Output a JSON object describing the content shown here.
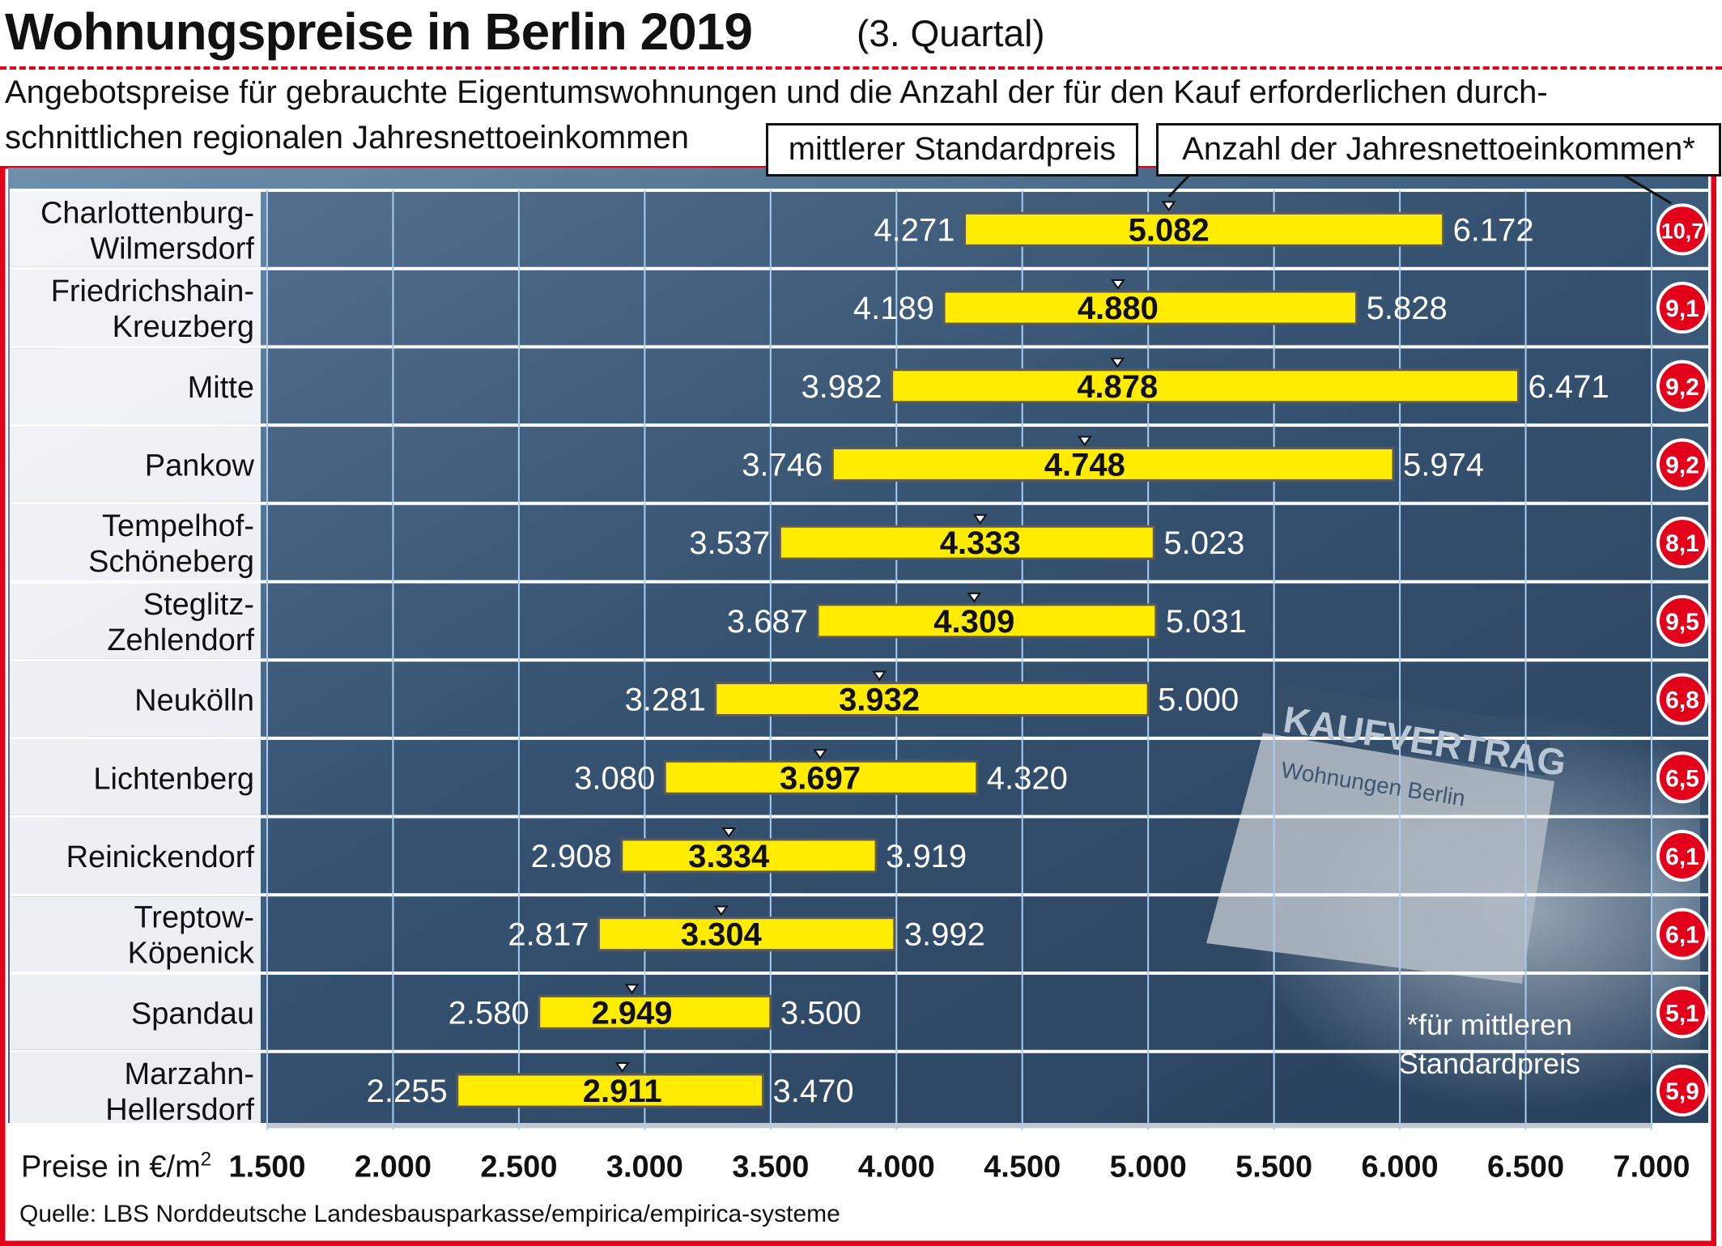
{
  "header": {
    "title": "Wohnungspreise in Berlin 2019",
    "title_suffix": "(3. Quartal)",
    "description_line1": "Angebotspreise für gebrauchte Eigentumswohnungen und die Anzahl der für den Kauf erforderlichen durch-",
    "description_line2": "schnittlichen regionalen Jahresnettoeinkommen",
    "callout_price": "mittlerer Standardpreis",
    "callout_income": "Anzahl der Jahresnettoeinkommen*"
  },
  "footnote": {
    "line1": "*für mittleren",
    "line2": "Standardpreis"
  },
  "photo_text": {
    "kaufvertrag": "KAUFVERTRAG",
    "wohnungen": "Wohnungen Berlin"
  },
  "source": "Quelle: LBS Norddeutsche Landesbausparkasse/empirica/empirica-systeme",
  "colors": {
    "accent_red": "#e2001a",
    "bar_yellow": "#ffec00",
    "background_blue": "#4e6f8f"
  },
  "chart_data": {
    "type": "bar",
    "orientation": "horizontal",
    "xlabel": "Preise in €/m²",
    "xlim": [
      1500,
      7000
    ],
    "xticks": [
      "1.500",
      "2.000",
      "2.500",
      "3.000",
      "3.500",
      "4.000",
      "4.500",
      "5.000",
      "5.500",
      "6.000",
      "6.500",
      "7.000"
    ],
    "tick_values": [
      1500,
      2000,
      2500,
      3000,
      3500,
      4000,
      4500,
      5000,
      5500,
      6000,
      6500,
      7000
    ],
    "grid": true,
    "rows": [
      {
        "name": [
          "Charlottenburg-",
          "Wilmersdorf"
        ],
        "low": 4271,
        "median": 5082,
        "high": 6172,
        "low_label": "4.271",
        "median_label": "5.082",
        "high_label": "6.172",
        "incomes": "10,7"
      },
      {
        "name": [
          "Friedrichshain-",
          "Kreuzberg"
        ],
        "low": 4189,
        "median": 4880,
        "high": 5828,
        "low_label": "4.189",
        "median_label": "4.880",
        "high_label": "5.828",
        "incomes": "9,1"
      },
      {
        "name": [
          "Mitte"
        ],
        "low": 3982,
        "median": 4878,
        "high": 6471,
        "low_label": "3.982",
        "median_label": "4.878",
        "high_label": "6.471",
        "incomes": "9,2"
      },
      {
        "name": [
          "Pankow"
        ],
        "low": 3746,
        "median": 4748,
        "high": 5974,
        "low_label": "3.746",
        "median_label": "4.748",
        "high_label": "5.974",
        "incomes": "9,2"
      },
      {
        "name": [
          "Tempelhof-",
          "Schöneberg"
        ],
        "low": 3537,
        "median": 4333,
        "high": 5023,
        "low_label": "3.537",
        "median_label": "4.333",
        "high_label": "5.023",
        "incomes": "8,1"
      },
      {
        "name": [
          "Steglitz-",
          "Zehlendorf"
        ],
        "low": 3687,
        "median": 4309,
        "high": 5031,
        "low_label": "3.687",
        "median_label": "4.309",
        "high_label": "5.031",
        "incomes": "9,5"
      },
      {
        "name": [
          "Neukölln"
        ],
        "low": 3281,
        "median": 3932,
        "high": 5000,
        "low_label": "3.281",
        "median_label": "3.932",
        "high_label": "5.000",
        "incomes": "6,8"
      },
      {
        "name": [
          "Lichtenberg"
        ],
        "low": 3080,
        "median": 3697,
        "high": 4320,
        "low_label": "3.080",
        "median_label": "3.697",
        "high_label": "4.320",
        "incomes": "6,5"
      },
      {
        "name": [
          "Reinickendorf"
        ],
        "low": 2908,
        "median": 3334,
        "high": 3919,
        "low_label": "2.908",
        "median_label": "3.334",
        "high_label": "3.919",
        "incomes": "6,1"
      },
      {
        "name": [
          "Treptow-",
          "Köpenick"
        ],
        "low": 2817,
        "median": 3304,
        "high": 3992,
        "low_label": "2.817",
        "median_label": "3.304",
        "high_label": "3.992",
        "incomes": "6,1"
      },
      {
        "name": [
          "Spandau"
        ],
        "low": 2580,
        "median": 2949,
        "high": 3500,
        "low_label": "2.580",
        "median_label": "2.949",
        "high_label": "3.500",
        "incomes": "5,1"
      },
      {
        "name": [
          "Marzahn-",
          "Hellersdorf"
        ],
        "low": 2255,
        "median": 2911,
        "high": 3470,
        "low_label": "2.255",
        "median_label": "2.911",
        "high_label": "3.470",
        "incomes": "5,9"
      }
    ]
  }
}
